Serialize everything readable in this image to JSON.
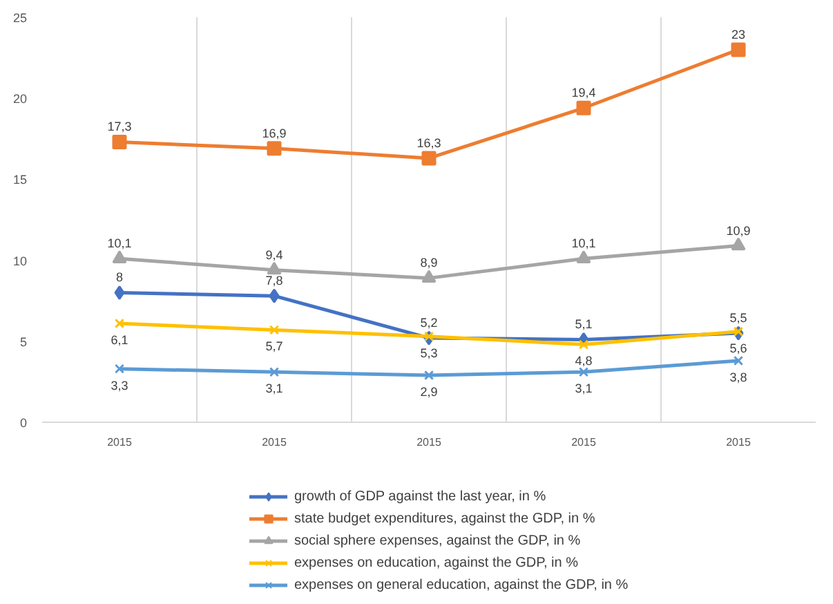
{
  "chart_data": {
    "type": "line",
    "categories": [
      "2015",
      "2015",
      "2015",
      "2015",
      "2015"
    ],
    "ylim": [
      0,
      25
    ],
    "yticks": [
      0,
      5,
      10,
      15,
      20,
      25
    ],
    "grid": "x",
    "legend": "bottom",
    "line_style": "solid",
    "series": [
      {
        "name": "growth of GDP against the last year, in %",
        "color": "#4472c4",
        "marker": "diamond",
        "values": [
          8,
          7.8,
          5.2,
          5.1,
          5.5
        ],
        "value_labels": [
          "8",
          "7,8",
          "5,2",
          "5,1",
          "5,5"
        ]
      },
      {
        "name": "state budget expenditures, against the GDP, in %",
        "color": "#ed7d31",
        "marker": "square",
        "values": [
          17.3,
          16.9,
          16.3,
          19.4,
          23
        ],
        "value_labels": [
          "17,3",
          "16,9",
          "16,3",
          "19,4",
          "23"
        ]
      },
      {
        "name": "social sphere expenses, against the GDP, in %",
        "color": "#a5a5a5",
        "marker": "triangle",
        "values": [
          10.1,
          9.4,
          8.9,
          10.1,
          10.9
        ],
        "value_labels": [
          "10,1",
          "9,4",
          "8,9",
          "10,1",
          "10,9"
        ]
      },
      {
        "name": "expenses on education, against the GDP, in %",
        "color": "#ffc000",
        "marker": "cross",
        "values": [
          6.1,
          5.7,
          5.3,
          4.8,
          5.6
        ],
        "value_labels": [
          "6,1",
          "5,7",
          "5,3",
          "4,8",
          "5,6"
        ]
      },
      {
        "name": "expenses on general education, against the GDP, in %",
        "color": "#5b9bd5",
        "marker": "cross",
        "values": [
          3.3,
          3.1,
          2.9,
          3.1,
          3.8
        ],
        "value_labels": [
          "3,3",
          "3,1",
          "2,9",
          "3,1",
          "3,8"
        ]
      }
    ]
  }
}
